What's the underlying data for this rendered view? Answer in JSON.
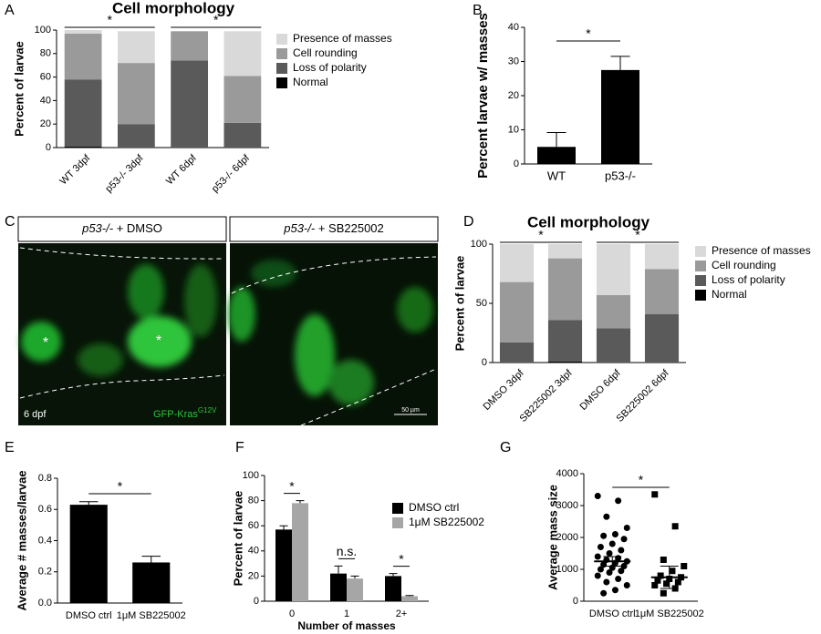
{
  "panel_labels": [
    "A",
    "B",
    "C",
    "D",
    "E",
    "F",
    "G"
  ],
  "image_panel": {
    "genotype": "p53-/-",
    "treatments": [
      "+ DMSO",
      "+ SB225002"
    ],
    "stage": "6 dpf",
    "reporter": "GFP-Kras",
    "reporter_superscript": "G12V",
    "scale_bar": "50 µm",
    "markers": [
      "*",
      "*"
    ]
  },
  "chart_data": [
    {
      "type": "stacked_bar",
      "title": "Cell morphology",
      "ylabel": "Percent of larvae",
      "categories": [
        "WT 3dpf",
        "p53-/- 3dpf",
        "WT 6dpf",
        "p53-/- 6dpf"
      ],
      "series": [
        {
          "name": "Normal",
          "color": "#000000",
          "values": [
            1,
            0,
            0,
            0
          ]
        },
        {
          "name": "Loss of polarity",
          "color": "#5a5a5a",
          "values": [
            57,
            20,
            74,
            21
          ]
        },
        {
          "name": "Cell rounding",
          "color": "#9a9a9a",
          "values": [
            39,
            52,
            25,
            40
          ]
        },
        {
          "name": "Presence of masses",
          "color": "#d9d9d9",
          "values": [
            3,
            27,
            0,
            38
          ]
        }
      ],
      "ylim": [
        0,
        100
      ],
      "yticks": [
        0,
        20,
        40,
        60,
        80,
        100
      ],
      "annotations": [
        "*",
        "*"
      ]
    },
    {
      "type": "bar",
      "ylabel": "Percent larvae w/ masses",
      "categories": [
        "WT",
        "p53-/-"
      ],
      "values": [
        5,
        27.5
      ],
      "errors": [
        4.2,
        4
      ],
      "color": "#000000",
      "ylim": [
        0,
        40
      ],
      "yticks": [
        0,
        10,
        20,
        30,
        40
      ],
      "annotations": [
        "*"
      ]
    },
    {
      "type": "stacked_bar",
      "title": "Cell morphology",
      "ylabel": "Percent of larvae",
      "categories": [
        "DMSO 3dpf",
        "SB225002 3dpf",
        "DMSO 6dpf",
        "SB225002 6dpf"
      ],
      "series": [
        {
          "name": "Normal",
          "color": "#000000",
          "values": [
            0,
            1,
            0,
            0
          ]
        },
        {
          "name": "Loss of polarity",
          "color": "#5a5a5a",
          "values": [
            17,
            35,
            29,
            41
          ]
        },
        {
          "name": "Cell rounding",
          "color": "#9a9a9a",
          "values": [
            51,
            52,
            28,
            38
          ]
        },
        {
          "name": "Presence of masses",
          "color": "#d9d9d9",
          "values": [
            32,
            12,
            43,
            21
          ]
        }
      ],
      "ylim": [
        0,
        100
      ],
      "yticks": [
        0,
        50,
        100
      ],
      "annotations": [
        "*",
        "*"
      ]
    },
    {
      "type": "bar",
      "ylabel": "Average # masses/larvae",
      "categories": [
        "DMSO ctrl",
        "1μM SB225002"
      ],
      "values": [
        0.63,
        0.26
      ],
      "errors": [
        0.02,
        0.04
      ],
      "color": "#000000",
      "ylim": [
        0,
        0.8
      ],
      "yticks": [
        {
          "value": 0,
          "label": "0.0"
        },
        0.2,
        0.4,
        0.6,
        0.8
      ],
      "annotations": [
        "*"
      ]
    },
    {
      "type": "grouped_bar",
      "xlabel": "Number of masses",
      "ylabel": "Percent of larvae",
      "categories": [
        "0",
        "1",
        "2+"
      ],
      "series": [
        {
          "name": "DMSO ctrl",
          "color": "#000000",
          "values": [
            57,
            22,
            20
          ],
          "errors": [
            3,
            6,
            2
          ]
        },
        {
          "name": "1μM SB225002",
          "color": "#a6a6a6",
          "values": [
            78,
            18,
            4
          ],
          "errors": [
            2,
            2,
            0.5
          ]
        }
      ],
      "ylim": [
        0,
        100
      ],
      "yticks": [
        0,
        20,
        40,
        60,
        80,
        100
      ],
      "annotations": [
        "*",
        "n.s.",
        "*"
      ]
    },
    {
      "type": "dot",
      "ylabel": "Average mass size",
      "categories": [
        "DMSO ctrl",
        "1μM SB225002"
      ],
      "markers": [
        "circle",
        "square"
      ],
      "points": [
        [
          3300,
          3150,
          2650,
          2300,
          2100,
          2050,
          1950,
          1800,
          1700,
          1600,
          1500,
          1400,
          1350,
          1300,
          1250,
          1200,
          1150,
          1100,
          1050,
          1000,
          950,
          900,
          800,
          700,
          600,
          500,
          350,
          250
        ],
        [
          3350,
          2350,
          1300,
          1100,
          950,
          800,
          750,
          700,
          650,
          600,
          550,
          500,
          400,
          250
        ]
      ],
      "means": [
        1250,
        750
      ],
      "errors": [
        150,
        350
      ],
      "ylim": [
        0,
        4000
      ],
      "yticks": [
        0,
        1000,
        2000,
        3000,
        4000
      ],
      "annotations": [
        "*"
      ]
    }
  ]
}
